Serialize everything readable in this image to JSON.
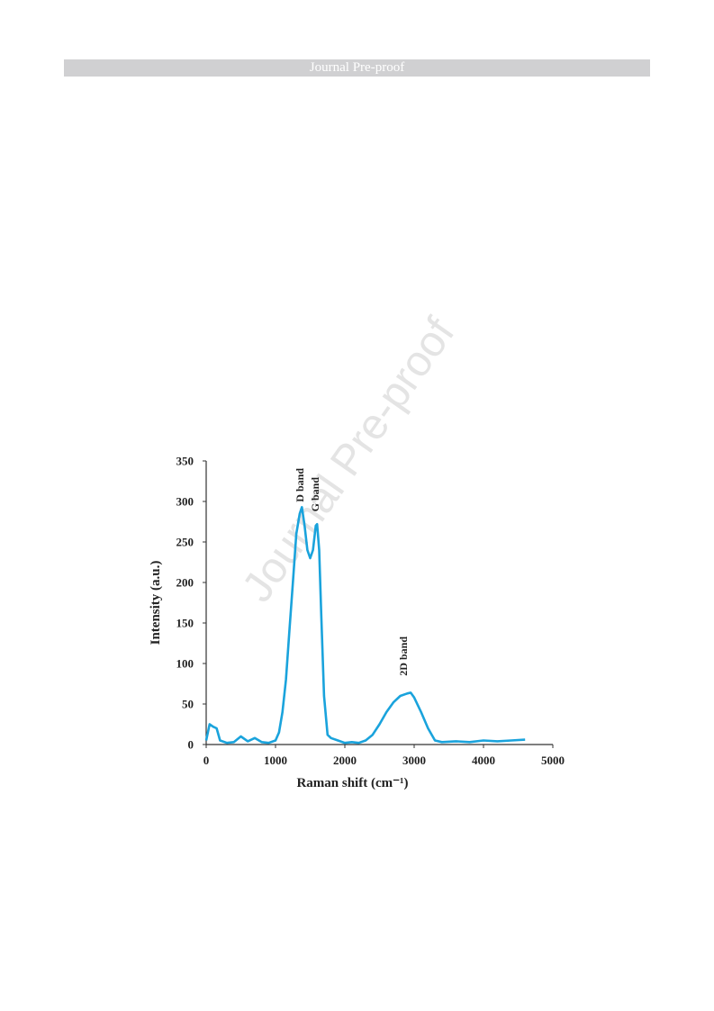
{
  "header": {
    "text": "Journal Pre-proof"
  },
  "watermark": "Journal Pre-proof",
  "chart_data": {
    "type": "line",
    "xlabel": "Raman shift (cm⁻¹)",
    "ylabel": "Intensity (a.u.)",
    "x": [
      0,
      50,
      100,
      150,
      200,
      300,
      400,
      500,
      600,
      700,
      800,
      900,
      1000,
      1050,
      1100,
      1150,
      1200,
      1250,
      1300,
      1350,
      1380,
      1420,
      1460,
      1500,
      1540,
      1580,
      1600,
      1630,
      1660,
      1700,
      1750,
      1800,
      1900,
      2000,
      2100,
      2200,
      2300,
      2400,
      2500,
      2600,
      2700,
      2800,
      2900,
      2950,
      3000,
      3100,
      3200,
      3300,
      3400,
      3600,
      3800,
      4000,
      4200,
      4400,
      4600
    ],
    "series": [
      {
        "color": "#1aa3dc",
        "values": [
          5,
          25,
          22,
          20,
          5,
          2,
          3,
          10,
          4,
          8,
          3,
          2,
          5,
          15,
          40,
          80,
          140,
          200,
          260,
          285,
          293,
          270,
          240,
          230,
          240,
          270,
          272,
          240,
          160,
          60,
          12,
          8,
          5,
          2,
          3,
          2,
          5,
          12,
          25,
          40,
          52,
          60,
          63,
          64,
          58,
          40,
          20,
          5,
          3,
          4,
          3,
          5,
          4,
          5,
          6
        ]
      }
    ],
    "annotations": [
      "D band",
      "G band",
      "2D band"
    ],
    "xlim": [
      0,
      5000
    ],
    "xticks": [
      0,
      1000,
      2000,
      3000,
      4000,
      5000
    ],
    "ylim": [
      0,
      350
    ],
    "yticks": [
      0,
      50,
      100,
      150,
      200,
      250,
      300,
      350
    ]
  }
}
